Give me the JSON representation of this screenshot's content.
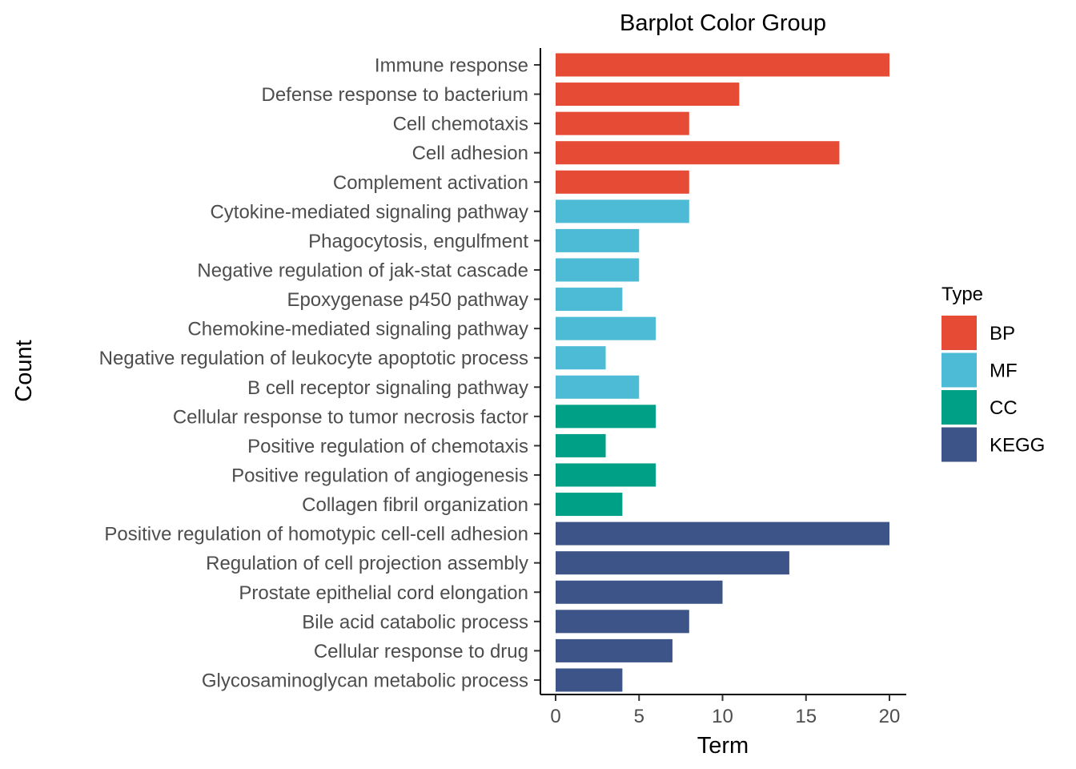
{
  "chart_data": {
    "type": "bar",
    "orientation": "horizontal",
    "title": "Barplot Color Group",
    "xlabel": "Term",
    "ylabel": "Count",
    "xlim": [
      0,
      20
    ],
    "xticks": [
      0,
      5,
      10,
      15,
      20
    ],
    "grid": false,
    "legend": {
      "title": "Type",
      "position": "right",
      "entries": [
        {
          "name": "BP",
          "color": "#E64B35"
        },
        {
          "name": "MF",
          "color": "#4DBBD5"
        },
        {
          "name": "CC",
          "color": "#00A087"
        },
        {
          "name": "KEGG",
          "color": "#3C5488"
        }
      ]
    },
    "categories": [
      "Immune response",
      "Defense response to bacterium",
      "Cell chemotaxis",
      "Cell adhesion",
      "Complement activation",
      "Cytokine-mediated signaling pathway",
      "Phagocytosis, engulfment",
      "Negative regulation of jak-stat cascade",
      "Epoxygenase p450 pathway",
      "Chemokine-mediated signaling pathway",
      "Negative regulation of leukocyte apoptotic process",
      "B cell receptor signaling pathway",
      "Cellular response to tumor necrosis factor",
      "Positive regulation of chemotaxis",
      "Positive regulation of angiogenesis",
      "Collagen fibril organization",
      "Positive regulation of homotypic cell-cell adhesion",
      "Regulation of cell projection assembly",
      "Prostate epithelial cord elongation",
      "Bile acid catabolic process",
      "Cellular response to drug",
      "Glycosaminoglycan metabolic process"
    ],
    "values": [
      20,
      11,
      8,
      17,
      8,
      8,
      5,
      5,
      4,
      6,
      3,
      5,
      6,
      3,
      6,
      4,
      20,
      14,
      10,
      8,
      7,
      4
    ],
    "groups": [
      "BP",
      "BP",
      "BP",
      "BP",
      "BP",
      "MF",
      "MF",
      "MF",
      "MF",
      "MF",
      "MF",
      "MF",
      "CC",
      "CC",
      "CC",
      "CC",
      "KEGG",
      "KEGG",
      "KEGG",
      "KEGG",
      "KEGG",
      "KEGG"
    ]
  }
}
